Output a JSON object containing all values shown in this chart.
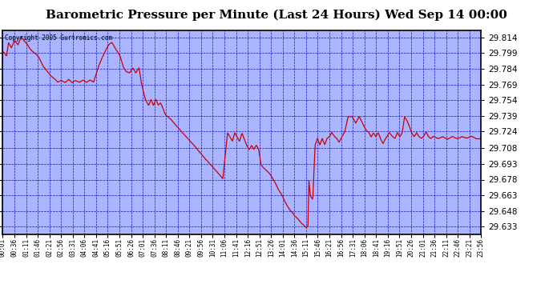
{
  "title": "Barometric Pressure per Minute (Last 24 Hours) Wed Sep 14 00:00",
  "copyright": "Copyright 2005 Gurtronics.com",
  "background_color": "#ffffff",
  "plot_background": "#aab4ff",
  "line_color": "#cc0000",
  "grid_color": "#0000bb",
  "border_color": "#000000",
  "title_fontsize": 11,
  "yticks": [
    29.633,
    29.648,
    29.663,
    29.678,
    29.693,
    29.708,
    29.724,
    29.739,
    29.754,
    29.769,
    29.784,
    29.799,
    29.814
  ],
  "ymin": 29.626,
  "ymax": 29.821,
  "xtick_labels": [
    "00:01",
    "00:36",
    "01:11",
    "01:46",
    "02:21",
    "02:56",
    "03:31",
    "04:06",
    "04:41",
    "05:16",
    "05:51",
    "06:26",
    "07:01",
    "07:36",
    "08:11",
    "08:46",
    "09:21",
    "09:56",
    "10:31",
    "11:06",
    "11:41",
    "12:16",
    "12:51",
    "13:26",
    "14:01",
    "14:36",
    "15:11",
    "15:46",
    "16:21",
    "16:56",
    "17:31",
    "18:06",
    "18:41",
    "19:16",
    "19:51",
    "20:26",
    "21:01",
    "21:36",
    "22:11",
    "22:46",
    "23:21",
    "23:56"
  ],
  "waypoints": [
    [
      0.0,
      29.8
    ],
    [
      0.008,
      29.795
    ],
    [
      0.012,
      29.808
    ],
    [
      0.018,
      29.803
    ],
    [
      0.025,
      29.81
    ],
    [
      0.032,
      29.806
    ],
    [
      0.038,
      29.814
    ],
    [
      0.045,
      29.81
    ],
    [
      0.052,
      29.806
    ],
    [
      0.06,
      29.8
    ],
    [
      0.068,
      29.797
    ],
    [
      0.075,
      29.793
    ],
    [
      0.085,
      29.784
    ],
    [
      0.092,
      29.78
    ],
    [
      0.1,
      29.775
    ],
    [
      0.108,
      29.772
    ],
    [
      0.115,
      29.769
    ],
    [
      0.122,
      29.771
    ],
    [
      0.13,
      29.769
    ],
    [
      0.138,
      29.772
    ],
    [
      0.145,
      29.769
    ],
    [
      0.152,
      29.771
    ],
    [
      0.16,
      29.769
    ],
    [
      0.168,
      29.771
    ],
    [
      0.175,
      29.769
    ],
    [
      0.183,
      29.771
    ],
    [
      0.19,
      29.769
    ],
    [
      0.2,
      29.784
    ],
    [
      0.208,
      29.793
    ],
    [
      0.215,
      29.8
    ],
    [
      0.222,
      29.806
    ],
    [
      0.228,
      29.808
    ],
    [
      0.232,
      29.805
    ],
    [
      0.238,
      29.8
    ],
    [
      0.245,
      29.795
    ],
    [
      0.252,
      29.784
    ],
    [
      0.258,
      29.78
    ],
    [
      0.265,
      29.779
    ],
    [
      0.272,
      29.784
    ],
    [
      0.278,
      29.779
    ],
    [
      0.285,
      29.784
    ],
    [
      0.29,
      29.769
    ],
    [
      0.298,
      29.754
    ],
    [
      0.305,
      29.748
    ],
    [
      0.31,
      29.754
    ],
    [
      0.315,
      29.748
    ],
    [
      0.32,
      29.754
    ],
    [
      0.325,
      29.748
    ],
    [
      0.33,
      29.75
    ],
    [
      0.34,
      29.739
    ],
    [
      0.35,
      29.735
    ],
    [
      0.36,
      29.73
    ],
    [
      0.37,
      29.725
    ],
    [
      0.38,
      29.72
    ],
    [
      0.39,
      29.715
    ],
    [
      0.4,
      29.71
    ],
    [
      0.41,
      29.705
    ],
    [
      0.42,
      29.7
    ],
    [
      0.43,
      29.695
    ],
    [
      0.44,
      29.69
    ],
    [
      0.45,
      29.685
    ],
    [
      0.46,
      29.68
    ],
    [
      0.47,
      29.724
    ],
    [
      0.475,
      29.72
    ],
    [
      0.48,
      29.716
    ],
    [
      0.485,
      29.724
    ],
    [
      0.49,
      29.72
    ],
    [
      0.495,
      29.716
    ],
    [
      0.5,
      29.724
    ],
    [
      0.505,
      29.718
    ],
    [
      0.51,
      29.712
    ],
    [
      0.515,
      29.708
    ],
    [
      0.52,
      29.712
    ],
    [
      0.525,
      29.708
    ],
    [
      0.53,
      29.712
    ],
    [
      0.535,
      29.708
    ],
    [
      0.54,
      29.693
    ],
    [
      0.55,
      29.688
    ],
    [
      0.56,
      29.684
    ],
    [
      0.565,
      29.68
    ],
    [
      0.57,
      29.676
    ],
    [
      0.575,
      29.671
    ],
    [
      0.58,
      29.667
    ],
    [
      0.585,
      29.663
    ],
    [
      0.59,
      29.658
    ],
    [
      0.595,
      29.654
    ],
    [
      0.6,
      29.65
    ],
    [
      0.605,
      29.648
    ],
    [
      0.61,
      29.645
    ],
    [
      0.615,
      29.643
    ],
    [
      0.62,
      29.64
    ],
    [
      0.625,
      29.637
    ],
    [
      0.63,
      29.635
    ],
    [
      0.635,
      29.633
    ],
    [
      0.638,
      29.635
    ],
    [
      0.64,
      29.678
    ],
    [
      0.643,
      29.663
    ],
    [
      0.648,
      29.66
    ],
    [
      0.653,
      29.712
    ],
    [
      0.658,
      29.718
    ],
    [
      0.663,
      29.712
    ],
    [
      0.668,
      29.718
    ],
    [
      0.673,
      29.712
    ],
    [
      0.678,
      29.718
    ],
    [
      0.683,
      29.72
    ],
    [
      0.688,
      29.724
    ],
    [
      0.693,
      29.72
    ],
    [
      0.698,
      29.718
    ],
    [
      0.703,
      29.714
    ],
    [
      0.708,
      29.718
    ],
    [
      0.715,
      29.724
    ],
    [
      0.722,
      29.739
    ],
    [
      0.73,
      29.739
    ],
    [
      0.738,
      29.733
    ],
    [
      0.745,
      29.739
    ],
    [
      0.75,
      29.735
    ],
    [
      0.755,
      29.73
    ],
    [
      0.76,
      29.726
    ],
    [
      0.765,
      29.724
    ],
    [
      0.77,
      29.72
    ],
    [
      0.775,
      29.724
    ],
    [
      0.78,
      29.72
    ],
    [
      0.785,
      29.724
    ],
    [
      0.79,
      29.718
    ],
    [
      0.795,
      29.714
    ],
    [
      0.8,
      29.718
    ],
    [
      0.808,
      29.724
    ],
    [
      0.815,
      29.72
    ],
    [
      0.82,
      29.718
    ],
    [
      0.825,
      29.724
    ],
    [
      0.83,
      29.72
    ],
    [
      0.835,
      29.724
    ],
    [
      0.84,
      29.739
    ],
    [
      0.845,
      29.735
    ],
    [
      0.85,
      29.73
    ],
    [
      0.855,
      29.724
    ],
    [
      0.86,
      29.72
    ],
    [
      0.865,
      29.724
    ],
    [
      0.87,
      29.72
    ],
    [
      0.875,
      29.718
    ],
    [
      0.88,
      29.72
    ],
    [
      0.885,
      29.724
    ],
    [
      0.89,
      29.72
    ],
    [
      0.895,
      29.718
    ],
    [
      0.9,
      29.72
    ],
    [
      0.91,
      29.718
    ],
    [
      0.92,
      29.72
    ],
    [
      0.93,
      29.718
    ],
    [
      0.94,
      29.72
    ],
    [
      0.95,
      29.718
    ],
    [
      0.96,
      29.72
    ],
    [
      0.97,
      29.718
    ],
    [
      0.98,
      29.72
    ],
    [
      0.99,
      29.718
    ],
    [
      1.0,
      29.718
    ]
  ]
}
